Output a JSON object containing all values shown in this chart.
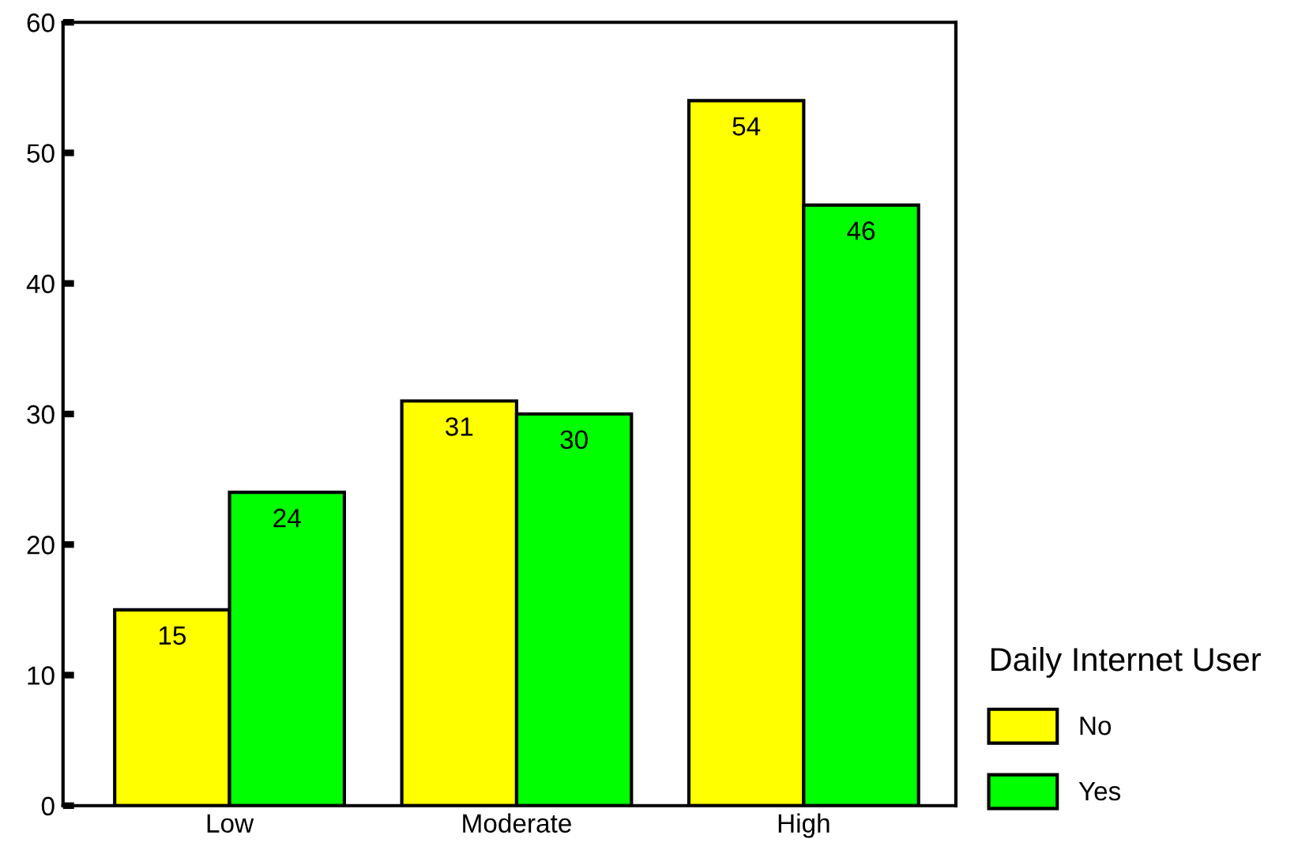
{
  "chart_data": {
    "type": "bar",
    "categories": [
      "Low",
      "Moderate",
      "High"
    ],
    "series": [
      {
        "name": "No",
        "color": "#ffff00",
        "values": [
          15,
          31,
          54
        ]
      },
      {
        "name": "Yes",
        "color": "#00ff00",
        "values": [
          24,
          30,
          46
        ]
      }
    ],
    "ylim": [
      0,
      60
    ],
    "yticks": [
      0,
      10,
      20,
      30,
      40,
      50,
      60
    ],
    "data_labels": true,
    "legend": "right",
    "legend_title": "Daily Internet User",
    "grid": false
  }
}
